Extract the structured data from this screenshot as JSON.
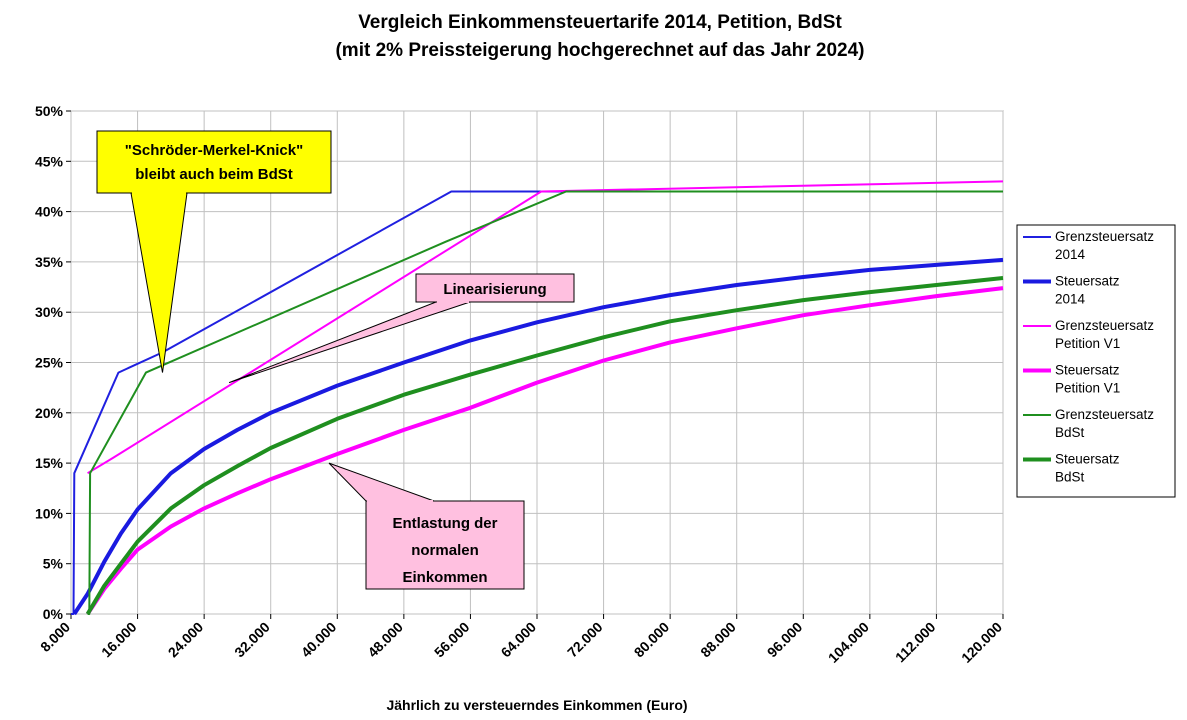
{
  "chart_data": {
    "type": "line",
    "title": "Vergleich Einkommensteuertarife 2014, Petition, BdSt",
    "subtitle": "(mit 2% Preissteigerung hochgerechnet auf das Jahr 2024)",
    "xlabel": "Jährlich zu versteuerndes Einkommen (Euro)",
    "ylabel": "",
    "xlim": [
      8000,
      120000
    ],
    "ylim": [
      0,
      0.5
    ],
    "x_tick_values": [
      8000,
      16000,
      24000,
      32000,
      40000,
      48000,
      56000,
      64000,
      72000,
      80000,
      88000,
      96000,
      104000,
      112000,
      120000
    ],
    "x_tick_labels": [
      "8.000",
      "16.000",
      "24.000",
      "32.000",
      "40.000",
      "48.000",
      "56.000",
      "64.000",
      "72.000",
      "80.000",
      "88.000",
      "96.000",
      "104.000",
      "112.000",
      "120.000"
    ],
    "y_tick_values": [
      0,
      0.05,
      0.1,
      0.15,
      0.2,
      0.25,
      0.3,
      0.35,
      0.4,
      0.45,
      0.5
    ],
    "y_tick_labels": [
      "0%",
      "5%",
      "10%",
      "15%",
      "20%",
      "25%",
      "30%",
      "35%",
      "40%",
      "45%",
      "50%"
    ],
    "grid": true,
    "legend_position": "right",
    "series": [
      {
        "name": "Grenzsteuersatz 2014",
        "legend_lines": [
          "Grenzsteuersatz",
          "2014"
        ],
        "color": "#2020e0",
        "width": 2,
        "points": [
          [
            8000,
            0
          ],
          [
            8300,
            0
          ],
          [
            8400,
            0.14
          ],
          [
            13700,
            0.24
          ],
          [
            19000,
            0.26
          ],
          [
            53700,
            0.42
          ],
          [
            120000,
            0.42
          ]
        ]
      },
      {
        "name": "Steuersatz 2014",
        "legend_lines": [
          "Steuersatz",
          "2014"
        ],
        "color": "#1a1ae0",
        "width": 4,
        "points": [
          [
            8400,
            0
          ],
          [
            10000,
            0.02
          ],
          [
            12000,
            0.052
          ],
          [
            14000,
            0.08
          ],
          [
            16000,
            0.104
          ],
          [
            20000,
            0.14
          ],
          [
            24000,
            0.164
          ],
          [
            28000,
            0.183
          ],
          [
            32000,
            0.2
          ],
          [
            40000,
            0.227
          ],
          [
            48000,
            0.25
          ],
          [
            56000,
            0.272
          ],
          [
            64000,
            0.29
          ],
          [
            72000,
            0.305
          ],
          [
            80000,
            0.317
          ],
          [
            88000,
            0.327
          ],
          [
            96000,
            0.335
          ],
          [
            104000,
            0.342
          ],
          [
            112000,
            0.347
          ],
          [
            120000,
            0.352
          ]
        ]
      },
      {
        "name": "Grenzsteuersatz Petition V1",
        "legend_lines": [
          "Grenzsteuersatz",
          "Petition V1"
        ],
        "color": "#ff00ff",
        "width": 2,
        "points": [
          [
            10000,
            0.14
          ],
          [
            13000,
            0.155
          ],
          [
            64500,
            0.42
          ],
          [
            120000,
            0.43
          ]
        ]
      },
      {
        "name": "Steuersatz Petition V1",
        "legend_lines": [
          "Steuersatz",
          "Petition V1"
        ],
        "color": "#ff00ff",
        "width": 4,
        "points": [
          [
            10000,
            0
          ],
          [
            12000,
            0.025
          ],
          [
            14000,
            0.045
          ],
          [
            16000,
            0.064
          ],
          [
            20000,
            0.087
          ],
          [
            24000,
            0.105
          ],
          [
            28000,
            0.12
          ],
          [
            32000,
            0.134
          ],
          [
            40000,
            0.159
          ],
          [
            48000,
            0.183
          ],
          [
            56000,
            0.205
          ],
          [
            64000,
            0.23
          ],
          [
            72000,
            0.252
          ],
          [
            80000,
            0.27
          ],
          [
            88000,
            0.284
          ],
          [
            96000,
            0.297
          ],
          [
            104000,
            0.307
          ],
          [
            112000,
            0.316
          ],
          [
            120000,
            0.324
          ]
        ]
      },
      {
        "name": "Grenzsteuersatz BdSt",
        "legend_lines": [
          "Grenzsteuersatz",
          "BdSt"
        ],
        "color": "#1f8f1f",
        "width": 2,
        "points": [
          [
            10000,
            0
          ],
          [
            10200,
            0
          ],
          [
            10300,
            0.14
          ],
          [
            17000,
            0.24
          ],
          [
            53000,
            0.37
          ],
          [
            67500,
            0.42
          ],
          [
            120000,
            0.42
          ]
        ]
      },
      {
        "name": "Steuersatz BdSt",
        "legend_lines": [
          "Steuersatz",
          "BdSt"
        ],
        "color": "#1f8f1f",
        "width": 4,
        "points": [
          [
            10000,
            0
          ],
          [
            12000,
            0.028
          ],
          [
            14000,
            0.05
          ],
          [
            16000,
            0.072
          ],
          [
            20000,
            0.105
          ],
          [
            24000,
            0.128
          ],
          [
            28000,
            0.147
          ],
          [
            32000,
            0.165
          ],
          [
            40000,
            0.194
          ],
          [
            48000,
            0.218
          ],
          [
            56000,
            0.238
          ],
          [
            64000,
            0.257
          ],
          [
            72000,
            0.275
          ],
          [
            80000,
            0.291
          ],
          [
            88000,
            0.302
          ],
          [
            96000,
            0.312
          ],
          [
            104000,
            0.32
          ],
          [
            112000,
            0.327
          ],
          [
            120000,
            0.334
          ]
        ]
      }
    ],
    "annotations": [
      {
        "id": "knick",
        "lines": [
          "\"Schröder-Merkel-Knick\"",
          "bleibt auch beim BdSt"
        ],
        "fill": "#ffff00",
        "pointer": [
          19000,
          0.24
        ]
      },
      {
        "id": "lin",
        "lines": [
          "Linearisierung"
        ],
        "fill": "#ffc0e0",
        "pointer": [
          27000,
          0.23
        ]
      },
      {
        "id": "ent",
        "lines": [
          "Entlastung der",
          "normalen",
          "Einkommen"
        ],
        "fill": "#ffc0e0",
        "pointer": [
          39000,
          0.15
        ]
      }
    ]
  }
}
